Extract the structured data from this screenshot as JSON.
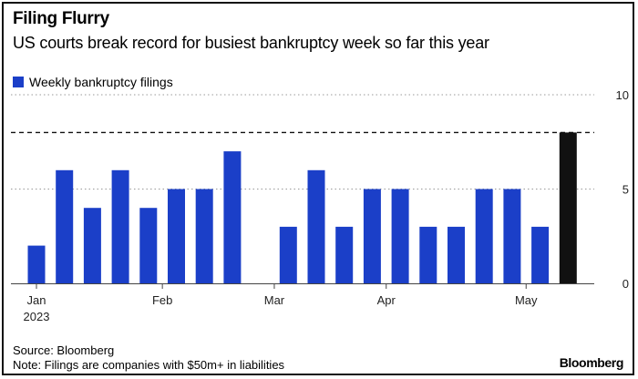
{
  "title": "Filing Flurry",
  "subtitle": "US courts break record for busiest bankruptcy week so far this year",
  "legend": {
    "label": "Weekly bankruptcy filings"
  },
  "colors": {
    "bar": "#1b3fc8",
    "highlight": "#111111",
    "grid": "#999999",
    "axis": "#444444"
  },
  "footer": {
    "source": "Source: Bloomberg",
    "note": "Note: Filings are companies with $50m+ in liabilities",
    "logo": "Bloomberg"
  },
  "chart_data": {
    "type": "bar",
    "series": [
      {
        "name": "Weekly bankruptcy filings",
        "values": [
          2,
          6,
          4,
          6,
          4,
          5,
          5,
          7,
          0,
          3,
          6,
          3,
          5,
          5,
          3,
          3,
          5,
          5,
          3,
          8
        ]
      }
    ],
    "highlight_index": 19,
    "reference_line": 8,
    "ylim": [
      0,
      10
    ],
    "yticks": [
      0,
      5,
      10
    ],
    "y_axis_side": "right",
    "xticks": [
      {
        "index": 0,
        "label": "Jan",
        "sublabel": "2023"
      },
      {
        "index": 4.5,
        "label": "Feb",
        "sublabel": ""
      },
      {
        "index": 8.5,
        "label": "Mar",
        "sublabel": ""
      },
      {
        "index": 12.5,
        "label": "Apr",
        "sublabel": ""
      },
      {
        "index": 17.5,
        "label": "May",
        "sublabel": ""
      }
    ],
    "grid": true,
    "legend_position": "top-left"
  }
}
